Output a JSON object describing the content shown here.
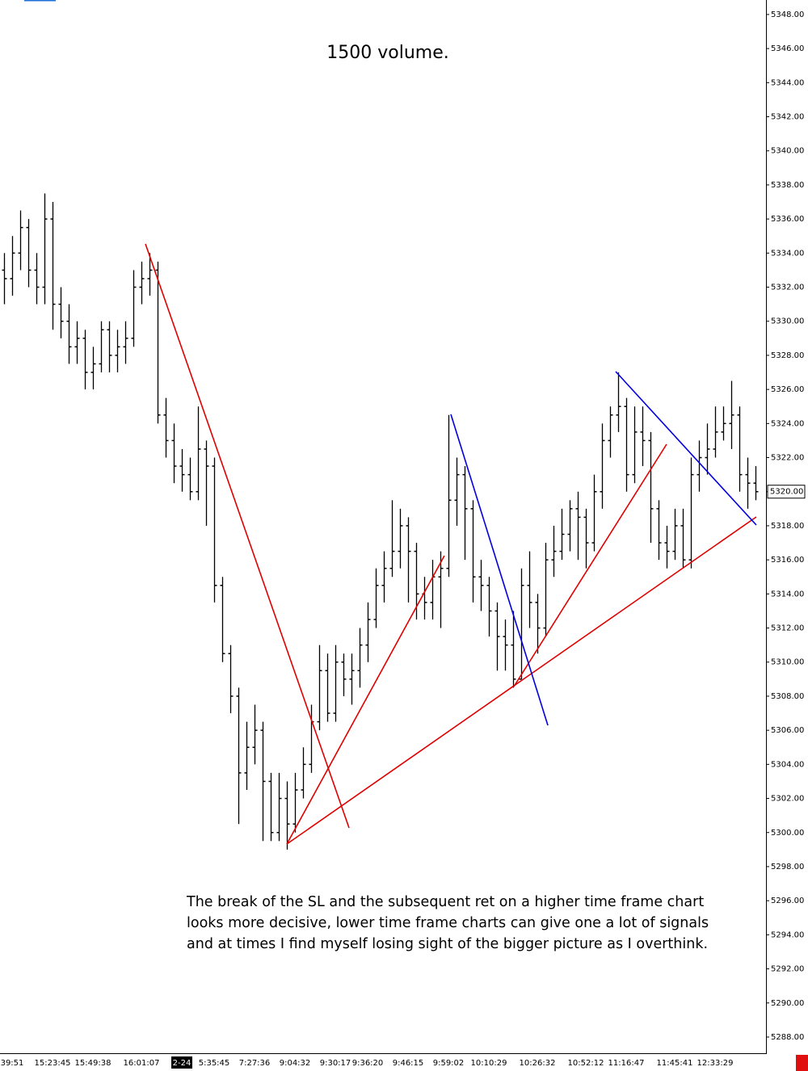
{
  "chart_data": {
    "type": "ohlc",
    "title": "1500 volume.",
    "annotation_lines": [
      "The break of the SL and the subsequent ret on a higher time frame chart",
      "looks more decisive, lower time frame charts can give one a lot of signals",
      "and at times I find myself losing sight of the bigger picture as I overthink."
    ],
    "categories": [
      null,
      "39:51",
      null,
      null,
      null,
      null,
      "15:23:45",
      null,
      null,
      null,
      null,
      "15:49:38",
      null,
      null,
      null,
      null,
      null,
      "16:01:07",
      null,
      null,
      null,
      null,
      "2-24",
      null,
      null,
      null,
      "5:35:45",
      null,
      null,
      null,
      null,
      "7:27:36",
      null,
      null,
      null,
      null,
      "9:04:32",
      null,
      null,
      null,
      null,
      "9:30:17",
      null,
      null,
      null,
      "9:36:20",
      null,
      null,
      null,
      null,
      "9:46:15",
      null,
      null,
      null,
      null,
      "9:59:02",
      null,
      null,
      null,
      null,
      "10:10:29",
      null,
      null,
      null,
      null,
      null,
      "10:26:32",
      null,
      null,
      null,
      null,
      null,
      "10:52:12",
      null,
      null,
      null,
      null,
      "11:16:47",
      null,
      null,
      null,
      null,
      null,
      "11:45:41",
      null,
      null,
      null,
      null,
      "12:33:29",
      null,
      null,
      null,
      null,
      null
    ],
    "highlighted_categories": [
      22
    ],
    "ohlc": [
      [
        5333,
        5334,
        5331,
        5332.5
      ],
      [
        5332.5,
        5335,
        5331.5,
        5334
      ],
      [
        5334,
        5336.5,
        5333,
        5335.5
      ],
      [
        5335.5,
        5336,
        5332,
        5333
      ],
      [
        5333,
        5334,
        5331,
        5332
      ],
      [
        5332,
        5337.5,
        5331,
        5336
      ],
      [
        5336,
        5337,
        5329.5,
        5331
      ],
      [
        5331,
        5332,
        5329,
        5330
      ],
      [
        5330,
        5331,
        5327.5,
        5328.5
      ],
      [
        5328.5,
        5330,
        5327.5,
        5329
      ],
      [
        5329,
        5329.5,
        5326,
        5327
      ],
      [
        5327,
        5328.5,
        5326,
        5327.5
      ],
      [
        5327.5,
        5330,
        5327,
        5329.5
      ],
      [
        5329.5,
        5330,
        5327,
        5328
      ],
      [
        5328,
        5329.5,
        5327,
        5328.5
      ],
      [
        5328.5,
        5330,
        5327.5,
        5329
      ],
      [
        5329,
        5333,
        5328.5,
        5332
      ],
      [
        5332,
        5333.5,
        5331,
        5332.5
      ],
      [
        5332.5,
        5334,
        5331.5,
        5333
      ],
      [
        5333,
        5333.5,
        5324,
        5324.5
      ],
      [
        5324.5,
        5325.5,
        5322,
        5323
      ],
      [
        5323,
        5324,
        5320.5,
        5321.5
      ],
      [
        5321.5,
        5322.5,
        5320,
        5321
      ],
      [
        5321,
        5322,
        5319.5,
        5320
      ],
      [
        5320,
        5325,
        5319.5,
        5322.5
      ],
      [
        5322.5,
        5323,
        5318,
        5321.5
      ],
      [
        5321.5,
        5322,
        5313.5,
        5314.5
      ],
      [
        5314.5,
        5315,
        5310,
        5310.5
      ],
      [
        5310.5,
        5311,
        5307,
        5308
      ],
      [
        5308,
        5308.5,
        5300.5,
        5303.5
      ],
      [
        5303.5,
        5306.5,
        5302.5,
        5305
      ],
      [
        5305,
        5307.5,
        5304,
        5306
      ],
      [
        5306,
        5306.5,
        5299.5,
        5303
      ],
      [
        5303,
        5303.5,
        5299.5,
        5300
      ],
      [
        5300,
        5303.5,
        5299.5,
        5302
      ],
      [
        5302,
        5303,
        5299,
        5300.5
      ],
      [
        5300.5,
        5303.5,
        5300,
        5302.5
      ],
      [
        5302.5,
        5305,
        5302,
        5304
      ],
      [
        5304,
        5307.5,
        5303.5,
        5306.5
      ],
      [
        5306.5,
        5311,
        5306,
        5309.5
      ],
      [
        5309.5,
        5310.5,
        5306.5,
        5307
      ],
      [
        5307,
        5311,
        5306.5,
        5310
      ],
      [
        5310,
        5310.5,
        5308,
        5309
      ],
      [
        5309,
        5310.5,
        5307.5,
        5309.5
      ],
      [
        5309.5,
        5312,
        5308.5,
        5311
      ],
      [
        5311,
        5313.5,
        5310,
        5312.5
      ],
      [
        5312.5,
        5315.5,
        5312,
        5314.5
      ],
      [
        5314.5,
        5316.5,
        5313.5,
        5315.5
      ],
      [
        5315.5,
        5319.5,
        5315,
        5316.5
      ],
      [
        5316.5,
        5319,
        5315.5,
        5318
      ],
      [
        5318,
        5318.5,
        5313.5,
        5316.5
      ],
      [
        5316.5,
        5317,
        5312.5,
        5314
      ],
      [
        5314,
        5315,
        5312.5,
        5313.5
      ],
      [
        5313.5,
        5316,
        5312.5,
        5315
      ],
      [
        5315,
        5316.5,
        5312,
        5315.5
      ],
      [
        5315.5,
        5324.5,
        5315,
        5319.5
      ],
      [
        5319.5,
        5322,
        5318,
        5321
      ],
      [
        5321,
        5321.5,
        5316,
        5319
      ],
      [
        5319,
        5319.5,
        5313.5,
        5315
      ],
      [
        5315,
        5316,
        5313,
        5314.5
      ],
      [
        5314.5,
        5315,
        5311.5,
        5313
      ],
      [
        5313,
        5313.5,
        5309.5,
        5311.5
      ],
      [
        5311.5,
        5312.5,
        5309.5,
        5311
      ],
      [
        5311,
        5313,
        5308.5,
        5309
      ],
      [
        5309,
        5315.5,
        5309,
        5314.5
      ],
      [
        5314.5,
        5316.5,
        5312,
        5313.5
      ],
      [
        5313.5,
        5314,
        5310.5,
        5312
      ],
      [
        5312,
        5317,
        5311.5,
        5316
      ],
      [
        5316,
        5318,
        5315,
        5316.5
      ],
      [
        5316.5,
        5319,
        5316,
        5317.5
      ],
      [
        5317.5,
        5319.5,
        5316.5,
        5319
      ],
      [
        5319,
        5320,
        5316,
        5318.5
      ],
      [
        5318.5,
        5319,
        5315.5,
        5317
      ],
      [
        5317,
        5321,
        5316.5,
        5320
      ],
      [
        5320,
        5324,
        5319,
        5323
      ],
      [
        5323,
        5325,
        5322,
        5324.5
      ],
      [
        5324.5,
        5327,
        5323.5,
        5325
      ],
      [
        5325,
        5325.5,
        5320,
        5321
      ],
      [
        5321,
        5325,
        5320.5,
        5323.5
      ],
      [
        5323.5,
        5325,
        5321.5,
        5323
      ],
      [
        5323,
        5323.5,
        5317,
        5319
      ],
      [
        5319,
        5319.5,
        5316,
        5317
      ],
      [
        5317,
        5318,
        5315.5,
        5316.5
      ],
      [
        5316.5,
        5319,
        5316,
        5318
      ],
      [
        5318,
        5319,
        5315.5,
        5316
      ],
      [
        5316,
        5322,
        5315.5,
        5321
      ],
      [
        5321,
        5323,
        5320,
        5322
      ],
      [
        5322,
        5324,
        5321,
        5322.5
      ],
      [
        5322.5,
        5325,
        5322,
        5323.5
      ],
      [
        5323.5,
        5325,
        5323,
        5324
      ],
      [
        5324,
        5326.5,
        5322.5,
        5324.5
      ],
      [
        5324.5,
        5325,
        5320,
        5321
      ],
      [
        5321,
        5322,
        5319,
        5320.5
      ],
      [
        5320.5,
        5321.5,
        5319.5,
        5320
      ]
    ],
    "color": "#000000",
    "ylim": [
      5287.05,
      5348.85
    ],
    "yticks": [
      {
        "value": 5288,
        "label": "5288.00"
      },
      {
        "value": 5290,
        "label": "5290.00"
      },
      {
        "value": 5292,
        "label": "5292.00"
      },
      {
        "value": 5294,
        "label": "5294.00"
      },
      {
        "value": 5296,
        "label": "5296.00"
      },
      {
        "value": 5298,
        "label": "5298.00"
      },
      {
        "value": 5300,
        "label": "5300.00"
      },
      {
        "value": 5302,
        "label": "5302.00"
      },
      {
        "value": 5304,
        "label": "5304.00"
      },
      {
        "value": 5306,
        "label": "5306.00"
      },
      {
        "value": 5308,
        "label": "5308.00"
      },
      {
        "value": 5310,
        "label": "5310.00"
      },
      {
        "value": 5312,
        "label": "5312.00"
      },
      {
        "value": 5314,
        "label": "5314.00"
      },
      {
        "value": 5316,
        "label": "5316.00"
      },
      {
        "value": 5318,
        "label": "5318.00"
      },
      {
        "value": 5320,
        "label": "5320.00"
      },
      {
        "value": 5322,
        "label": "5322.00"
      },
      {
        "value": 5324,
        "label": "5324.00"
      },
      {
        "value": 5326,
        "label": "5326.00"
      },
      {
        "value": 5328,
        "label": "5328.00"
      },
      {
        "value": 5330,
        "label": "5330.00"
      },
      {
        "value": 5332,
        "label": "5332.00"
      },
      {
        "value": 5334,
        "label": "5334.00"
      },
      {
        "value": 5336,
        "label": "5336.00"
      },
      {
        "value": 5338,
        "label": "5338.00"
      },
      {
        "value": 5340,
        "label": "5340.00"
      },
      {
        "value": 5342,
        "label": "5342.00"
      },
      {
        "value": 5344,
        "label": "5344.00"
      },
      {
        "value": 5346,
        "label": "5346.00"
      },
      {
        "value": 5348,
        "label": "5348.00"
      }
    ],
    "last_price": {
      "value": 5320,
      "label": "5320.00"
    }
  }
}
